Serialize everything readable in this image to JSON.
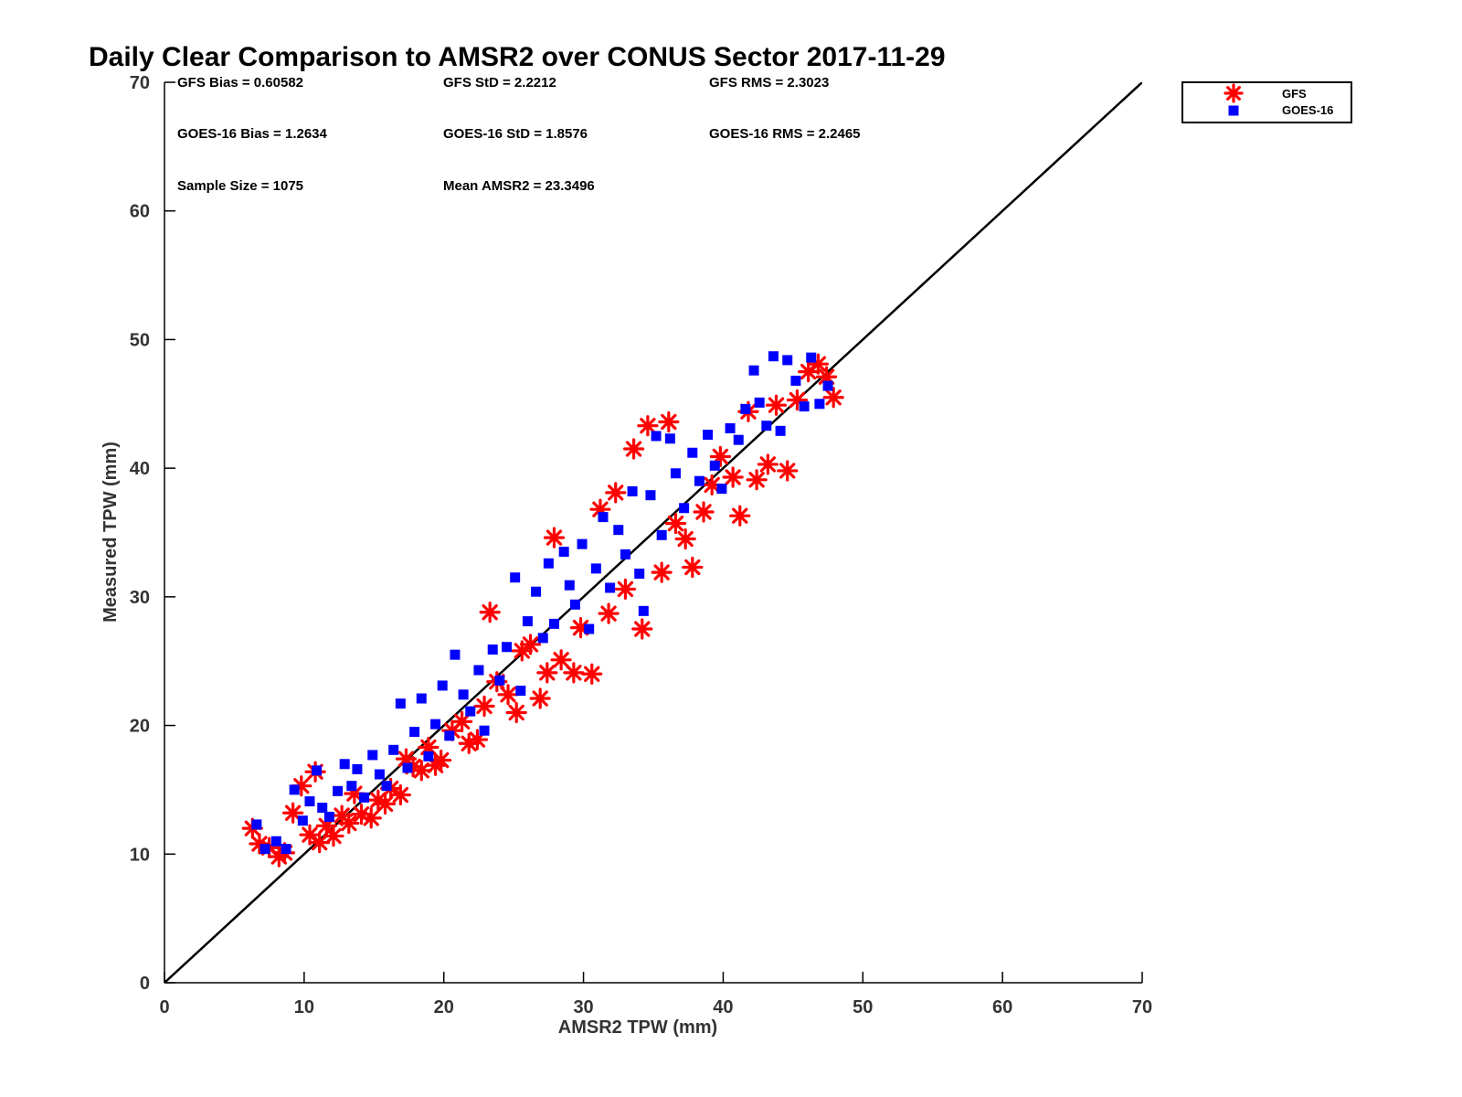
{
  "chart_data": {
    "type": "scatter",
    "title": "Daily Clear Comparison to AMSR2 over CONUS Sector 2017-11-29",
    "xlabel": "AMSR2 TPW (mm)",
    "ylabel": "Measured TPW (mm)",
    "xlim": [
      0,
      70
    ],
    "ylim": [
      0,
      70
    ],
    "xticks": [
      "0",
      "10",
      "20",
      "30",
      "40",
      "50",
      "60",
      "70"
    ],
    "yticks": [
      "0",
      "10",
      "20",
      "30",
      "40",
      "50",
      "60",
      "70"
    ],
    "grid": false,
    "legend_position": "outside-top-right",
    "reference_line": {
      "from": [
        0,
        0
      ],
      "to": [
        70,
        70
      ],
      "color": "#000000"
    },
    "stats": [
      "GFS Bias = 0.60582",
      "GFS StD = 2.2212",
      "GFS RMS = 2.3023",
      "GOES-16 Bias = 1.2634",
      "GOES-16 StD = 1.8576",
      "GOES-16 RMS = 2.2465",
      "Sample Size = 1075",
      "Mean AMSR2 = 23.3496"
    ],
    "series": [
      {
        "name": "GFS",
        "marker": "asterisk",
        "color": "#ff0000",
        "points": [
          [
            6.3,
            12.0
          ],
          [
            6.8,
            10.8
          ],
          [
            7.5,
            10.5
          ],
          [
            8.2,
            9.8
          ],
          [
            8.6,
            10.1
          ],
          [
            9.2,
            13.2
          ],
          [
            9.8,
            15.3
          ],
          [
            10.4,
            11.5
          ],
          [
            10.8,
            16.4
          ],
          [
            11.1,
            10.9
          ],
          [
            11.6,
            12.2
          ],
          [
            12.1,
            11.4
          ],
          [
            12.7,
            13.0
          ],
          [
            13.2,
            12.4
          ],
          [
            13.6,
            14.7
          ],
          [
            14.1,
            13.1
          ],
          [
            14.8,
            12.8
          ],
          [
            15.3,
            14.2
          ],
          [
            15.8,
            13.9
          ],
          [
            16.2,
            15.1
          ],
          [
            16.9,
            14.6
          ],
          [
            17.3,
            17.4
          ],
          [
            17.8,
            16.8
          ],
          [
            18.4,
            16.5
          ],
          [
            18.9,
            18.3
          ],
          [
            19.4,
            16.9
          ],
          [
            19.8,
            17.3
          ],
          [
            20.6,
            19.6
          ],
          [
            21.3,
            20.3
          ],
          [
            21.8,
            18.6
          ],
          [
            22.4,
            18.9
          ],
          [
            22.9,
            21.5
          ],
          [
            23.3,
            28.8
          ],
          [
            23.8,
            23.4
          ],
          [
            24.6,
            22.4
          ],
          [
            25.2,
            21.0
          ],
          [
            25.6,
            25.8
          ],
          [
            26.2,
            26.3
          ],
          [
            26.9,
            22.1
          ],
          [
            27.4,
            24.1
          ],
          [
            27.9,
            34.6
          ],
          [
            28.4,
            25.1
          ],
          [
            29.3,
            24.1
          ],
          [
            29.8,
            27.6
          ],
          [
            30.6,
            24.0
          ],
          [
            31.2,
            36.8
          ],
          [
            31.8,
            28.7
          ],
          [
            32.3,
            38.1
          ],
          [
            33.0,
            30.6
          ],
          [
            33.6,
            41.5
          ],
          [
            34.2,
            27.5
          ],
          [
            34.6,
            43.3
          ],
          [
            35.6,
            31.9
          ],
          [
            36.1,
            43.6
          ],
          [
            36.6,
            35.7
          ],
          [
            37.3,
            34.5
          ],
          [
            37.8,
            32.3
          ],
          [
            38.6,
            36.6
          ],
          [
            39.2,
            38.7
          ],
          [
            39.8,
            40.9
          ],
          [
            40.7,
            39.3
          ],
          [
            41.2,
            36.3
          ],
          [
            41.8,
            44.4
          ],
          [
            42.4,
            39.1
          ],
          [
            43.2,
            40.3
          ],
          [
            43.8,
            44.9
          ],
          [
            44.6,
            39.8
          ],
          [
            45.3,
            45.3
          ],
          [
            46.1,
            47.5
          ],
          [
            46.8,
            48.1
          ],
          [
            47.4,
            47.1
          ],
          [
            47.9,
            45.5
          ]
        ]
      },
      {
        "name": "GOES-16",
        "marker": "square",
        "color": "#0000ff",
        "points": [
          [
            6.6,
            12.3
          ],
          [
            7.2,
            10.4
          ],
          [
            8.0,
            11.0
          ],
          [
            8.7,
            10.4
          ],
          [
            9.3,
            15.0
          ],
          [
            9.9,
            12.6
          ],
          [
            10.4,
            14.1
          ],
          [
            10.9,
            16.5
          ],
          [
            11.3,
            13.6
          ],
          [
            11.8,
            12.9
          ],
          [
            12.4,
            14.9
          ],
          [
            12.9,
            17.0
          ],
          [
            13.4,
            15.3
          ],
          [
            13.8,
            16.6
          ],
          [
            14.3,
            14.4
          ],
          [
            14.9,
            17.7
          ],
          [
            15.4,
            16.2
          ],
          [
            15.9,
            15.3
          ],
          [
            16.4,
            18.1
          ],
          [
            16.9,
            21.7
          ],
          [
            17.4,
            16.7
          ],
          [
            17.9,
            19.5
          ],
          [
            18.4,
            22.1
          ],
          [
            18.9,
            17.6
          ],
          [
            19.4,
            20.1
          ],
          [
            19.9,
            23.1
          ],
          [
            20.4,
            19.2
          ],
          [
            20.8,
            25.5
          ],
          [
            21.4,
            22.4
          ],
          [
            21.9,
            21.1
          ],
          [
            22.5,
            24.3
          ],
          [
            22.9,
            19.6
          ],
          [
            23.5,
            25.9
          ],
          [
            24.0,
            23.5
          ],
          [
            24.5,
            26.1
          ],
          [
            25.1,
            31.5
          ],
          [
            25.5,
            22.7
          ],
          [
            26.0,
            28.1
          ],
          [
            26.6,
            30.4
          ],
          [
            27.1,
            26.8
          ],
          [
            27.5,
            32.6
          ],
          [
            27.9,
            27.9
          ],
          [
            28.6,
            33.5
          ],
          [
            29.0,
            30.9
          ],
          [
            29.4,
            29.4
          ],
          [
            29.9,
            34.1
          ],
          [
            30.4,
            27.5
          ],
          [
            30.9,
            32.2
          ],
          [
            31.4,
            36.2
          ],
          [
            31.9,
            30.7
          ],
          [
            32.5,
            35.2
          ],
          [
            33.0,
            33.3
          ],
          [
            33.5,
            38.2
          ],
          [
            34.0,
            31.8
          ],
          [
            34.3,
            28.9
          ],
          [
            34.8,
            37.9
          ],
          [
            35.2,
            42.5
          ],
          [
            35.6,
            34.8
          ],
          [
            36.2,
            42.3
          ],
          [
            36.6,
            39.6
          ],
          [
            37.2,
            36.9
          ],
          [
            37.8,
            41.2
          ],
          [
            38.3,
            39.0
          ],
          [
            38.9,
            42.6
          ],
          [
            39.4,
            40.2
          ],
          [
            39.9,
            38.4
          ],
          [
            40.5,
            43.1
          ],
          [
            41.1,
            42.2
          ],
          [
            41.6,
            44.6
          ],
          [
            42.2,
            47.6
          ],
          [
            42.6,
            45.1
          ],
          [
            43.1,
            43.3
          ],
          [
            43.6,
            48.7
          ],
          [
            44.1,
            42.9
          ],
          [
            44.6,
            48.4
          ],
          [
            45.2,
            46.8
          ],
          [
            45.8,
            44.8
          ],
          [
            46.3,
            48.6
          ],
          [
            46.9,
            45.0
          ],
          [
            47.5,
            46.4
          ]
        ]
      }
    ]
  }
}
